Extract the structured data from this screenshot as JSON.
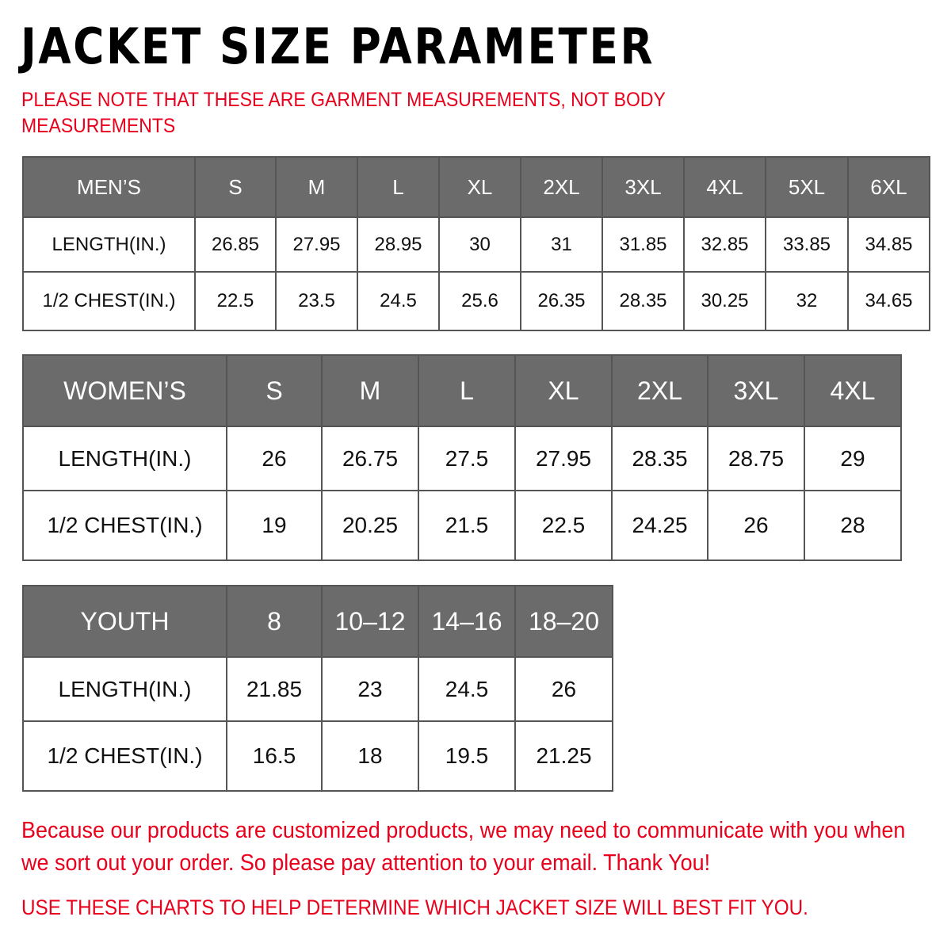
{
  "title": "JACKET SIZE PARAMETER",
  "note": "PLEASE NOTE THAT THESE ARE GARMENT MEASUREMENTS, NOT BODY MEASUREMENTS",
  "colors": {
    "header_bg": "#6b6b6b",
    "accent_red": "#e8001c"
  },
  "tables": {
    "men": {
      "header": [
        "MEN’S",
        "S",
        "M",
        "L",
        "XL",
        "2XL",
        "3XL",
        "4XL",
        "5XL",
        "6XL"
      ],
      "rows": [
        [
          "LENGTH(IN.)",
          "26.85",
          "27.95",
          "28.95",
          "30",
          "31",
          "31.85",
          "32.85",
          "33.85",
          "34.85"
        ],
        [
          "1/2 CHEST(IN.)",
          "22.5",
          "23.5",
          "24.5",
          "25.6",
          "26.35",
          "28.35",
          "30.25",
          "32",
          "34.65"
        ]
      ]
    },
    "women": {
      "header": [
        "WOMEN’S",
        "S",
        "M",
        "L",
        "XL",
        "2XL",
        "3XL",
        "4XL"
      ],
      "rows": [
        [
          "LENGTH(IN.)",
          "26",
          "26.75",
          "27.5",
          "27.95",
          "28.35",
          "28.75",
          "29"
        ],
        [
          "1/2 CHEST(IN.)",
          "19",
          "20.25",
          "21.5",
          "22.5",
          "24.25",
          "26",
          "28"
        ]
      ]
    },
    "youth": {
      "header": [
        "YOUTH",
        "8",
        "10–12",
        "14–16",
        "18–20"
      ],
      "rows": [
        [
          "LENGTH(IN.)",
          "21.85",
          "23",
          "24.5",
          "26"
        ],
        [
          "1/2 CHEST(IN.)",
          "16.5",
          "18",
          "19.5",
          "21.25"
        ]
      ]
    }
  },
  "footer": {
    "message": "Because our products are customized products, we may need to communicate with you when we sort out your order. So please pay attention to your email. Thank You!",
    "advice": "USE THESE CHARTS TO HELP DETERMINE WHICH JACKET SIZE WILL BEST FIT YOU."
  }
}
